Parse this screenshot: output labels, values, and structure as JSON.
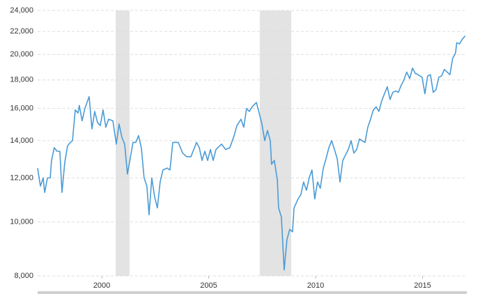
{
  "chart_data": {
    "type": "line",
    "log_scale": true,
    "grid": true,
    "color": "#4a9bd6",
    "recession_color": "#e3e3e3",
    "xlim": [
      1996.87,
      2017.07
    ],
    "xticks": [
      2000,
      2005,
      2010,
      2015
    ],
    "ylim": [
      8000,
      24000
    ],
    "yticks": [
      {
        "value": 8000,
        "label": "8,000"
      },
      {
        "value": 10000,
        "label": "10,000"
      },
      {
        "value": 12000,
        "label": "12,000"
      },
      {
        "value": 14000,
        "label": "14,000"
      },
      {
        "value": 16000,
        "label": "16,000"
      },
      {
        "value": 18000,
        "label": "18,000"
      },
      {
        "value": 20000,
        "label": "20,000"
      },
      {
        "value": 22000,
        "label": "22,000"
      },
      {
        "value": 24000,
        "label": "24,000"
      }
    ],
    "recessions": [
      [
        2000.65,
        2001.3
      ],
      [
        2007.39,
        2008.86
      ]
    ],
    "x": [
      1997.0,
      1997.13,
      1997.26,
      1997.33,
      1997.46,
      1997.59,
      1997.65,
      1997.78,
      1997.91,
      1998.04,
      1998.14,
      1998.27,
      1998.4,
      1998.53,
      1998.63,
      1998.76,
      1998.89,
      1998.95,
      1999.08,
      1999.21,
      1999.41,
      1999.54,
      1999.67,
      1999.8,
      1999.93,
      2000.06,
      2000.19,
      2000.32,
      2000.52,
      2000.68,
      2000.81,
      2000.94,
      2001.07,
      2001.2,
      2001.33,
      2001.46,
      2001.59,
      2001.72,
      2001.85,
      2001.98,
      2002.11,
      2002.21,
      2002.34,
      2002.47,
      2002.6,
      2002.73,
      2002.86,
      2003.06,
      2003.19,
      2003.32,
      2003.58,
      2003.78,
      2003.97,
      2004.17,
      2004.43,
      2004.56,
      2004.69,
      2004.82,
      2004.95,
      2005.08,
      2005.21,
      2005.34,
      2005.6,
      2005.79,
      2005.99,
      2006.19,
      2006.32,
      2006.51,
      2006.64,
      2006.77,
      2006.9,
      2007.03,
      2007.23,
      2007.36,
      2007.49,
      2007.62,
      2007.75,
      2007.88,
      2007.94,
      2008.07,
      2008.21,
      2008.27,
      2008.4,
      2008.53,
      2008.66,
      2008.79,
      2008.92,
      2008.99,
      2009.18,
      2009.31,
      2009.44,
      2009.57,
      2009.7,
      2009.83,
      2009.96,
      2010.09,
      2010.22,
      2010.36,
      2010.49,
      2010.62,
      2010.75,
      2010.88,
      2011.01,
      2011.14,
      2011.27,
      2011.53,
      2011.66,
      2011.79,
      2011.92,
      2012.05,
      2012.18,
      2012.31,
      2012.44,
      2012.57,
      2012.7,
      2012.83,
      2012.96,
      2013.09,
      2013.22,
      2013.35,
      2013.48,
      2013.61,
      2013.74,
      2013.87,
      2014.0,
      2014.13,
      2014.26,
      2014.4,
      2014.53,
      2014.66,
      2014.79,
      2014.98,
      2015.11,
      2015.24,
      2015.37,
      2015.5,
      2015.63,
      2015.76,
      2015.89,
      2016.02,
      2016.15,
      2016.28,
      2016.41,
      2016.54,
      2016.6,
      2016.73,
      2016.86,
      2016.99
    ],
    "values": [
      12500,
      11600,
      12000,
      11300,
      12000,
      12000,
      12900,
      13600,
      13400,
      13400,
      11300,
      12800,
      13700,
      13900,
      14000,
      15900,
      15700,
      16200,
      15200,
      16000,
      16800,
      14700,
      15800,
      15100,
      14900,
      15900,
      14800,
      15300,
      15200,
      13800,
      15000,
      14200,
      13800,
      12200,
      13000,
      13900,
      13900,
      14300,
      13600,
      12000,
      11600,
      10300,
      12000,
      11100,
      10600,
      11800,
      12400,
      12500,
      12400,
      13900,
      13900,
      13300,
      13100,
      13100,
      13900,
      13600,
      12900,
      13400,
      12900,
      13500,
      12900,
      13500,
      13800,
      13500,
      13600,
      14300,
      14900,
      15300,
      14800,
      16000,
      15800,
      16100,
      16400,
      15700,
      15000,
      14000,
      14600,
      14000,
      12700,
      12900,
      11900,
      10600,
      10200,
      8200,
      9300,
      9700,
      9600,
      10600,
      11000,
      11200,
      11800,
      11400,
      12000,
      12400,
      11000,
      11800,
      11500,
      12500,
      13000,
      13600,
      14000,
      13500,
      13000,
      11800,
      12900,
      13500,
      14000,
      13300,
      13500,
      14100,
      14000,
      13900,
      14800,
      15300,
      15900,
      16100,
      15800,
      16500,
      17000,
      17500,
      16600,
      17100,
      17200,
      17100,
      17600,
      18000,
      18600,
      18100,
      18900,
      18500,
      18400,
      18200,
      17000,
      18300,
      18400,
      17100,
      17300,
      18200,
      18300,
      18800,
      18600,
      18400,
      19700,
      20100,
      21000,
      20900,
      21300,
      21600
    ]
  }
}
